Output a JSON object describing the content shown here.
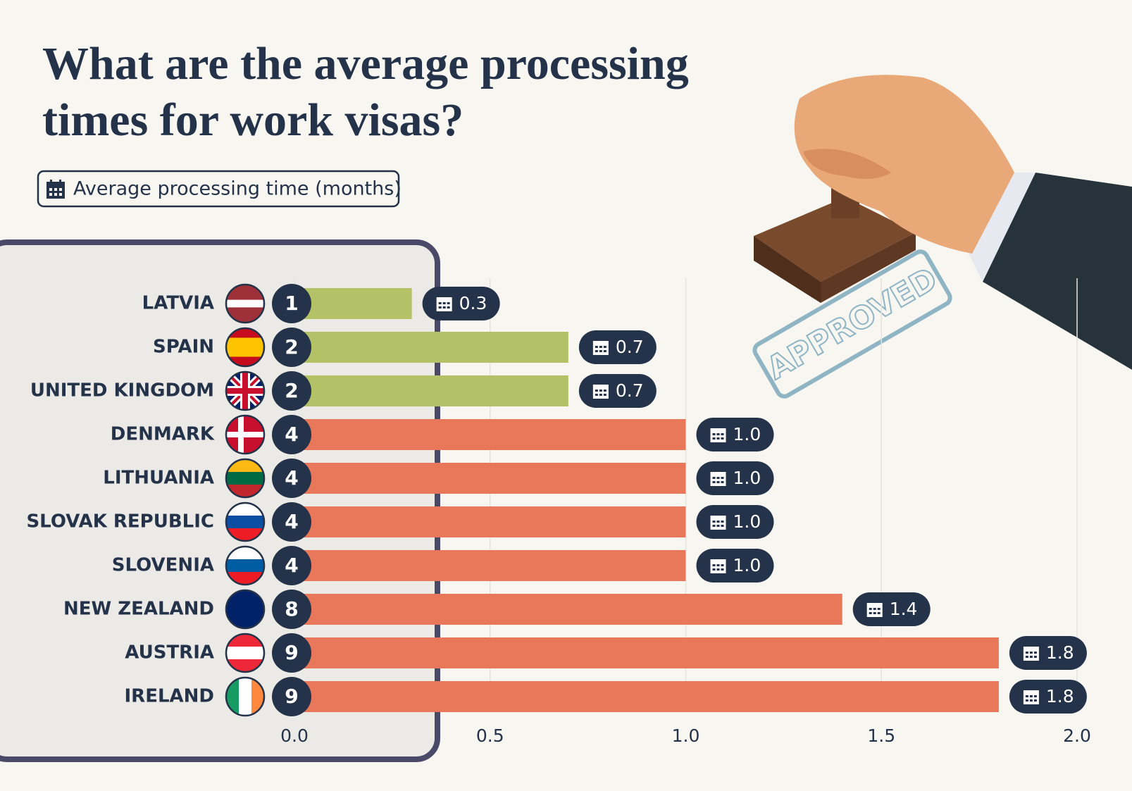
{
  "chart_data": {
    "type": "bar",
    "orientation": "horizontal",
    "title": "What are the average processing times for work visas?",
    "series_name": "Average processing time (months)",
    "annotation": "APPROVED",
    "categories": [
      "LATVIA",
      "SPAIN",
      "UNITED KINGDOM",
      "DENMARK",
      "LITHUANIA",
      "SLOVAK REPUBLIC",
      "SLOVENIA",
      "NEW ZEALAND",
      "AUSTRIA",
      "IRELAND"
    ],
    "ranks": [
      1,
      2,
      2,
      4,
      4,
      4,
      4,
      8,
      9,
      9
    ],
    "values": [
      0.3,
      0.7,
      0.7,
      1.0,
      1.0,
      1.0,
      1.0,
      1.4,
      1.8,
      1.8
    ],
    "value_labels": [
      "0.3",
      "0.7",
      "0.7",
      "1.0",
      "1.0",
      "1.0",
      "1.0",
      "1.4",
      "1.8",
      "1.8"
    ],
    "colors": [
      "#b3c267",
      "#b3c267",
      "#b3c267",
      "#e9785a",
      "#e9785a",
      "#e9785a",
      "#e9785a",
      "#e9785a",
      "#e9785a",
      "#e9785a"
    ],
    "xlim": [
      0,
      2
    ],
    "xticks": [
      {
        "value": 0,
        "label": "0.0"
      },
      0.5,
      {
        "value": 1,
        "label": "1.0"
      },
      1.5,
      {
        "value": 2,
        "label": "2.0"
      }
    ],
    "grid": true
  }
}
